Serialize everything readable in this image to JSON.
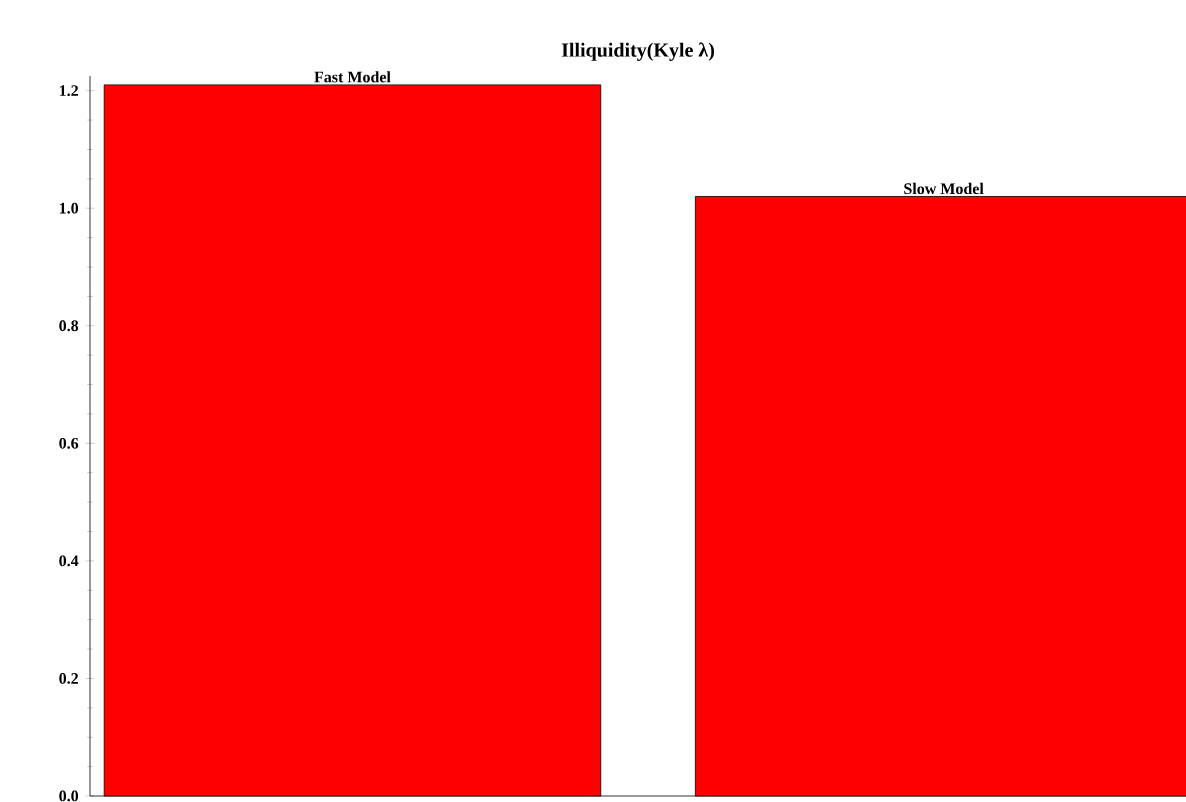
{
  "chart_data": {
    "type": "bar",
    "title": "Illiquidity(Kyle λ)",
    "categories": [
      "Fast Model",
      "Slow Model"
    ],
    "values": [
      1.21,
      1.02
    ],
    "color": "#ff0000",
    "ylim": [
      0,
      1.225
    ],
    "yticks": [
      {
        "value": 0,
        "label": "0.0"
      },
      {
        "value": 0.2,
        "label": "0.2"
      },
      {
        "value": 0.4,
        "label": "0.4"
      },
      {
        "value": 0.6,
        "label": "0.6"
      },
      {
        "value": 0.8,
        "label": "0.8"
      },
      {
        "value": 1.0,
        "label": "1.0"
      },
      {
        "value": 1.2,
        "label": "1.2"
      }
    ],
    "grid": false
  }
}
